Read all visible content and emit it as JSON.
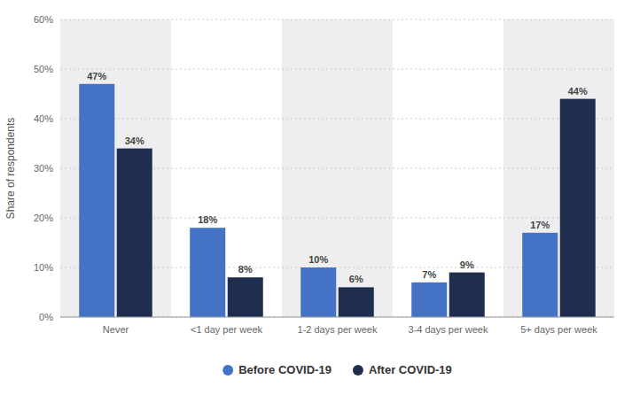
{
  "chart_data": {
    "type": "bar",
    "categories": [
      "Never",
      "<1 day per week",
      "1-2 days per week",
      "3-4 days per week",
      "5+ days per week"
    ],
    "series": [
      {
        "name": "Before COVID-19",
        "color": "#4472c4",
        "values": [
          47,
          18,
          10,
          7,
          17
        ],
        "value_labels": [
          "47%",
          "18%",
          "10%",
          "7%",
          "17%"
        ]
      },
      {
        "name": "After COVID-19",
        "color": "#1f2d4e",
        "values": [
          34,
          8,
          6,
          9,
          44
        ],
        "value_labels": [
          "34%",
          "8%",
          "6%",
          "9%",
          "44%"
        ]
      }
    ],
    "ylabel": "Share of respondents",
    "ylim": [
      0,
      60
    ],
    "yticks": [
      {
        "value": 0,
        "label": "0%"
      },
      {
        "value": 10,
        "label": "10%"
      },
      {
        "value": 20,
        "label": "20%"
      },
      {
        "value": 30,
        "label": "30%"
      },
      {
        "value": 40,
        "label": "40%"
      },
      {
        "value": 50,
        "label": "50%"
      },
      {
        "value": 60,
        "label": "60%"
      }
    ],
    "grid": true,
    "data_labels": true,
    "legend": "bottom"
  }
}
